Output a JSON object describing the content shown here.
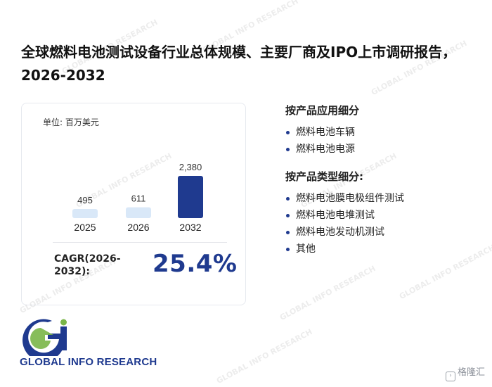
{
  "title": "全球燃料电池测试设备行业总体规模、主要厂商及IPO上市调研报告，2026-2032",
  "chart_data": {
    "type": "bar",
    "unit_label": "单位: 百万美元",
    "categories": [
      "2025",
      "2026",
      "2032"
    ],
    "values": [
      495,
      611,
      2380
    ],
    "value_labels": [
      "495",
      "611",
      "2,380"
    ],
    "ylim": [
      0,
      2380
    ],
    "bar_colors": [
      "#d9e8f8",
      "#d9e8f8",
      "#1f3a8f"
    ],
    "grid": false,
    "legend": "none"
  },
  "cagr": {
    "label": "CAGR(2026-2032):",
    "value": "25.4%"
  },
  "segments": [
    {
      "title": "按产品应用细分",
      "items": [
        "燃料电池车辆",
        "燃料电池电源"
      ]
    },
    {
      "title": "按产品类型细分:",
      "items": [
        "燃料电池膜电极组件测试",
        "燃料电池电堆测试",
        "燃料电池发动机测试",
        "其他"
      ]
    }
  ],
  "logo": {
    "text": "GLOBAL INFO RESEARCH",
    "colors": {
      "primary": "#1f3a8f",
      "accent": "#7ab648"
    }
  },
  "corner_brand": "格隆汇",
  "colors": {
    "accent": "#1f3a8f",
    "light_bar": "#d9e8f8"
  }
}
